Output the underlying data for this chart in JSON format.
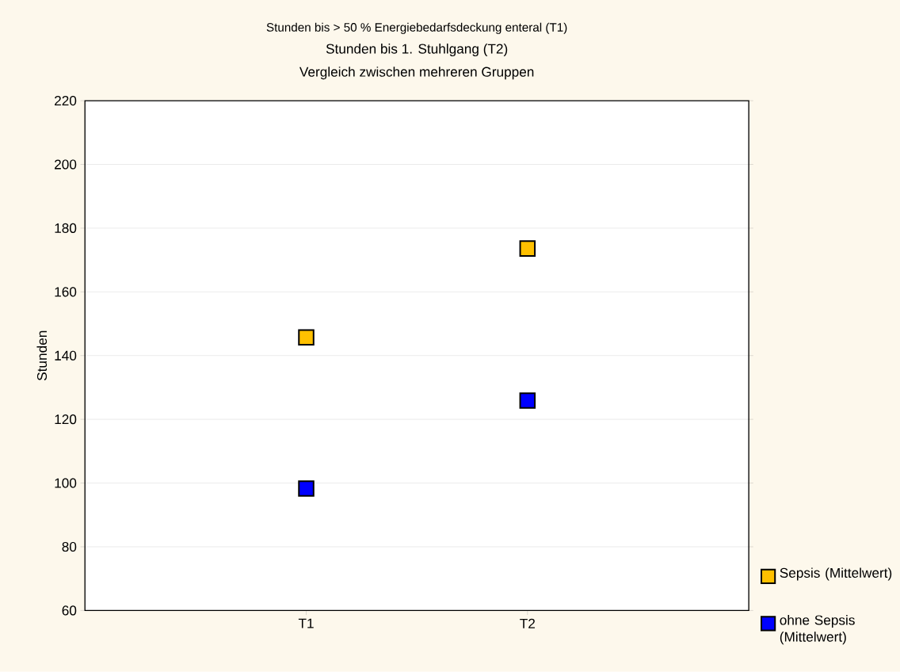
{
  "chart_data": {
    "type": "scatter",
    "title": "Stunden bis > 50 % Energiebedarfsdeckung enteral (T1)",
    "subtitle": "Stunden bis 1. Stuhlgang (T2)",
    "annotations": [
      "Vergleich zwischen mehreren Gruppen"
    ],
    "ylabel": "Stunden",
    "categories": [
      "T1",
      "T2"
    ],
    "series": [
      {
        "name": "Sepsis (Mittelwert)",
        "color": "#ffc000",
        "values": [
          145.7,
          173.6
        ]
      },
      {
        "name": "ohne Sepsis (Mittelwert)",
        "color": "#0000ff",
        "values": [
          98.3,
          125.9
        ]
      }
    ],
    "ylim": [
      60,
      220
    ],
    "yticks": [
      60,
      80,
      100,
      120,
      140,
      160,
      180,
      200,
      220
    ],
    "grid": "y",
    "marker": "square",
    "legend": "bottom right"
  }
}
